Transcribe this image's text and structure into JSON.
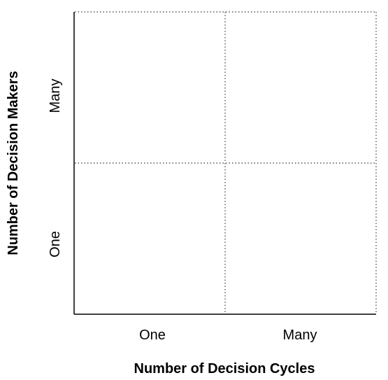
{
  "diagram": {
    "x_axis": {
      "title": "Number of Decision Cycles",
      "ticks": [
        "One",
        "Many"
      ]
    },
    "y_axis": {
      "title": "Number of Decision Makers",
      "ticks": [
        "One",
        "Many"
      ]
    },
    "colors": {
      "axis": "#000000",
      "grid": "#555555",
      "background": "#ffffff"
    }
  }
}
